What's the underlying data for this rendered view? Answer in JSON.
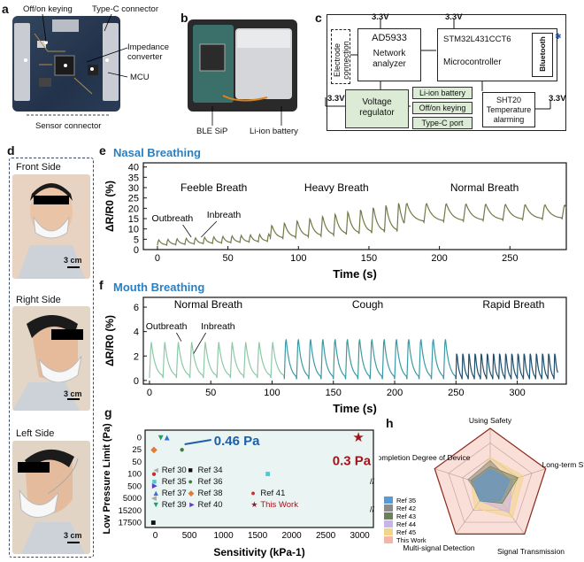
{
  "panels": {
    "a": "a",
    "b": "b",
    "c": "c",
    "d": "d",
    "e": "e",
    "f": "f",
    "g": "g",
    "h": "h"
  },
  "panel_a": {
    "labels": [
      "Off/on keying",
      "Type-C connector",
      "Impedance converter",
      "MCU",
      "Sensor connector"
    ]
  },
  "panel_b": {
    "labels": [
      "BLE SiP",
      "Li-ion battery"
    ]
  },
  "panel_c": {
    "voltages": {
      "v1": "3.3V",
      "v2": "3.3V",
      "v3": "3.3V",
      "v4": "3.3V"
    },
    "electrode_conn": "Electrode connection",
    "ad_title": "AD5933",
    "ad_sub": "Network analyzer",
    "mcu_title": "STM32L431CCT6",
    "mcu_sub": "Microcontroller",
    "bluetooth": "Bluetooth",
    "volt_reg": "Voltage regulator",
    "li_ion": "Li-ion battery",
    "offon": "Off/on keying",
    "typec": "Type-C port",
    "sht": "SHT20 Temperature alarming"
  },
  "panel_d": {
    "front": "Front Side",
    "right": "Right Side",
    "left": "Left Side",
    "scale1": "3 cm",
    "scale2": "3 cm",
    "scale3": "3 cm"
  },
  "panel_e": {
    "title": "Nasal Breathing",
    "ylabel": "ΔR/R0 (%)",
    "xlabel": "Time (s)",
    "regions": [
      "Feeble Breath",
      "Heavy Breath",
      "Normal Breath"
    ],
    "annot": [
      "Outbreath",
      "Inbreath"
    ],
    "yticks": [
      "0",
      "5",
      "10",
      "15",
      "20",
      "25",
      "30",
      "35",
      "40"
    ],
    "xticks": [
      "0",
      "50",
      "100",
      "150",
      "200",
      "250"
    ]
  },
  "panel_f": {
    "title": "Mouth Breathing",
    "ylabel": "ΔR/R0 (%)",
    "xlabel": "Time (s)",
    "regions": [
      "Normal Breath",
      "Cough",
      "Rapid Breath"
    ],
    "annot": [
      "Outbreath",
      "Inbreath"
    ],
    "yticks": [
      "0",
      "2",
      "4",
      "6"
    ],
    "xticks": [
      "0",
      "50",
      "100",
      "150",
      "200",
      "250",
      "300"
    ]
  },
  "chart_data": [
    {
      "type": "line",
      "title": "Nasal Breathing",
      "xlabel": "Time (s)",
      "ylabel": "ΔR/R0 (%)",
      "xlim": [
        -10,
        290
      ],
      "ylim": [
        0,
        42
      ],
      "segments": [
        {
          "name": "Feeble Breath",
          "t_start": 0,
          "t_end": 80,
          "period": 6.5,
          "base": 2,
          "peak": 5,
          "base_end": 4,
          "peak_end": 8
        },
        {
          "name": "Heavy Breath",
          "t_start": 80,
          "t_end": 175,
          "period": 9,
          "base": 5,
          "peak": 12,
          "base_end": 9,
          "peak_end": 24
        },
        {
          "name": "Normal Breath",
          "t_start": 175,
          "t_end": 290,
          "period": 14,
          "base": 13,
          "peak": 23,
          "base_end": 15,
          "peak_end": 22
        }
      ],
      "color": "#6f7a46"
    },
    {
      "type": "line",
      "title": "Mouth Breathing",
      "xlabel": "Time (s)",
      "ylabel": "ΔR/R0 (%)",
      "xlim": [
        -5,
        340
      ],
      "ylim": [
        -0.3,
        6.8
      ],
      "segments": [
        {
          "name": "Normal Breath",
          "t_start": 0,
          "t_end": 110,
          "period": 11,
          "base": 0.2,
          "peak": 3.3,
          "color": "#8cc9a7"
        },
        {
          "name": "Cough",
          "t_start": 110,
          "t_end": 250,
          "period": 10,
          "base": 0.1,
          "peak": 3.7,
          "color": "#3b9ba5"
        },
        {
          "name": "Rapid Breath",
          "t_start": 250,
          "t_end": 333,
          "period": 5,
          "base": 0.1,
          "peak": 2.6,
          "color": "#1d4f6e"
        }
      ]
    },
    {
      "type": "scatter",
      "xlabel": "Sensitivity (kPa-1)",
      "ylabel": "Low Pressure Limit (Pa)",
      "xticks": [
        "0",
        "500",
        "1000",
        "1500",
        "2000",
        "2500",
        "3000"
      ],
      "yticks": [
        "0",
        "25",
        "50",
        "100",
        "500",
        "5000",
        "15200",
        "17500"
      ],
      "annotations": [
        "0.46 Pa",
        "0.3 Pa"
      ],
      "series": [
        {
          "name": "Ref 30",
          "marker": "◄",
          "color": "#aaaaaa",
          "x": -20,
          "y": "5000"
        },
        {
          "name": "Ref 34",
          "marker": "■",
          "color": "#111111",
          "x": -30,
          "y": "17500"
        },
        {
          "name": "Ref 35",
          "marker": "■",
          "color": "#49c9d2",
          "x": 1650,
          "y": "100"
        },
        {
          "name": "Ref 36",
          "marker": "●",
          "color": "#3e7a3e",
          "x": 390,
          "y": "25"
        },
        {
          "name": "Ref 37",
          "marker": "▲",
          "color": "#3a6fd8",
          "x": 170,
          "y": "0"
        },
        {
          "name": "Ref 38",
          "marker": "◆",
          "color": "#e07b39",
          "x": -20,
          "y": "25"
        },
        {
          "name": "Ref 39",
          "marker": "▼",
          "color": "#2a9a66",
          "x": 80,
          "y": "0"
        },
        {
          "name": "Ref 40",
          "marker": "►",
          "color": "#5b3fc4",
          "x": -10,
          "y": "500"
        },
        {
          "name": "Ref 41",
          "marker": "●",
          "color": "#c0302d",
          "x": -20,
          "y": "100"
        },
        {
          "name": "This Work",
          "marker": "★",
          "color": "#a0161c",
          "x": 2980,
          "y": "0"
        }
      ]
    },
    {
      "type": "radar",
      "axes": [
        "Using Safety",
        "Long-term Stability",
        "Signal Transmission",
        "Multi-signal Detection",
        "Completion Degree of Device"
      ],
      "series": [
        {
          "name": "Ref 35",
          "color": "#5b9bd5",
          "values": [
            0.3,
            0.35,
            0.3,
            0.3,
            0.3
          ]
        },
        {
          "name": "Ref 42",
          "color": "#8c8c8c",
          "values": [
            0.45,
            0.35,
            0.3,
            0.25,
            0.4
          ]
        },
        {
          "name": "Ref 43",
          "color": "#6a7f5a",
          "values": [
            0.35,
            0.5,
            0.35,
            0.3,
            0.35
          ]
        },
        {
          "name": "Ref 44",
          "color": "#c8b4e6",
          "values": [
            0.3,
            0.4,
            0.55,
            0.3,
            0.3
          ]
        },
        {
          "name": "Ref 45",
          "color": "#f2d48a",
          "values": [
            0.5,
            0.6,
            0.65,
            0.45,
            0.35
          ]
        },
        {
          "name": "This Work",
          "color": "#f4b6a8",
          "values": [
            1,
            1,
            1,
            1,
            1
          ]
        }
      ]
    }
  ],
  "panel_g": {
    "legend": [
      "Ref 30",
      "Ref 34",
      "Ref 35",
      "Ref 36",
      "Ref 37",
      "Ref 38",
      "Ref 39",
      "Ref 40",
      "Ref 41",
      "This Work"
    ],
    "ann1": "0.46 Pa",
    "ann2": "0.3 Pa",
    "xlabel": "Sensitivity (kPa-1)",
    "ylabel": "Low Pressure Limit (Pa)"
  },
  "panel_h": {
    "axes": [
      "Using Safety",
      "Long-term Stability",
      "Signal Transmission",
      "Multi-signal Detection",
      "Completion Degree of Device"
    ],
    "legend": [
      "Ref 35",
      "Ref 42",
      "Ref 43",
      "Ref 44",
      "Ref 45",
      "This Work"
    ]
  }
}
